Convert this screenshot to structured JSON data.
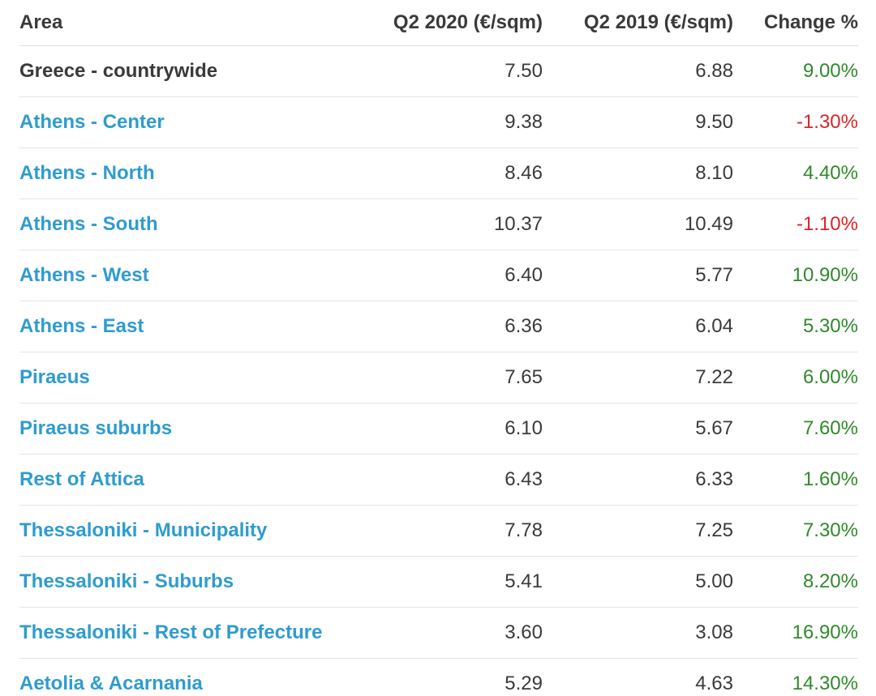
{
  "table": {
    "headers": {
      "area": "Area",
      "q2_2020": "Q2 2020 (€/sqm)",
      "q2_2019": "Q2 2019 (€/sqm)",
      "change": "Change %"
    },
    "rows": [
      {
        "area": "Greece - countrywide",
        "link": false,
        "q2_2020": "7.50",
        "q2_2019": "6.88",
        "change": "9.00%",
        "trend": "pos"
      },
      {
        "area": "Athens - Center",
        "link": true,
        "q2_2020": "9.38",
        "q2_2019": "9.50",
        "change": "-1.30%",
        "trend": "neg"
      },
      {
        "area": "Athens - North",
        "link": true,
        "q2_2020": "8.46",
        "q2_2019": "8.10",
        "change": "4.40%",
        "trend": "pos"
      },
      {
        "area": "Athens - South",
        "link": true,
        "q2_2020": "10.37",
        "q2_2019": "10.49",
        "change": "-1.10%",
        "trend": "neg"
      },
      {
        "area": "Athens - West",
        "link": true,
        "q2_2020": "6.40",
        "q2_2019": "5.77",
        "change": "10.90%",
        "trend": "pos"
      },
      {
        "area": "Athens - East",
        "link": true,
        "q2_2020": "6.36",
        "q2_2019": "6.04",
        "change": "5.30%",
        "trend": "pos"
      },
      {
        "area": "Piraeus",
        "link": true,
        "q2_2020": "7.65",
        "q2_2019": "7.22",
        "change": "6.00%",
        "trend": "pos"
      },
      {
        "area": "Piraeus suburbs",
        "link": true,
        "q2_2020": "6.10",
        "q2_2019": "5.67",
        "change": "7.60%",
        "trend": "pos"
      },
      {
        "area": "Rest of Attica",
        "link": true,
        "q2_2020": "6.43",
        "q2_2019": "6.33",
        "change": "1.60%",
        "trend": "pos"
      },
      {
        "area": "Thessaloniki - Municipality",
        "link": true,
        "q2_2020": "7.78",
        "q2_2019": "7.25",
        "change": "7.30%",
        "trend": "pos"
      },
      {
        "area": "Thessaloniki - Suburbs",
        "link": true,
        "q2_2020": "5.41",
        "q2_2019": "5.00",
        "change": "8.20%",
        "trend": "pos"
      },
      {
        "area": "Thessaloniki - Rest of Prefecture",
        "link": true,
        "q2_2020": "3.60",
        "q2_2019": "3.08",
        "change": "16.90%",
        "trend": "pos"
      },
      {
        "area": "Aetolia & Acarnania",
        "link": true,
        "q2_2020": "5.29",
        "q2_2019": "4.63",
        "change": "14.30%",
        "trend": "pos"
      }
    ]
  },
  "colors": {
    "link": "#2e9ccf",
    "text": "#3a3a3a",
    "positive": "#2f8a2a",
    "negative": "#d8262a"
  }
}
